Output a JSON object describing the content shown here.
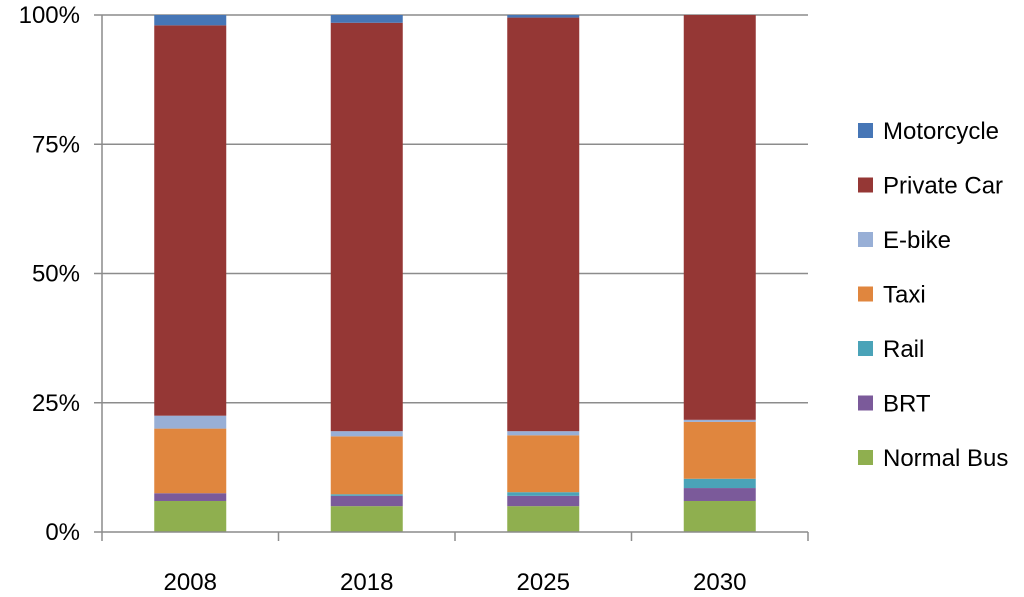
{
  "chart_data": {
    "type": "bar",
    "stacked": true,
    "percent_stacked": true,
    "categories": [
      "2008",
      "2018",
      "2025",
      "2030"
    ],
    "series": [
      {
        "name": "Normal Bus",
        "color": "#8FAF4F",
        "values": [
          6.0,
          5.0,
          5.0,
          6.0
        ]
      },
      {
        "name": "BRT",
        "color": "#7B5A9A",
        "values": [
          1.5,
          2.0,
          2.0,
          2.5
        ]
      },
      {
        "name": "Rail",
        "color": "#4AA3B8",
        "values": [
          0.0,
          0.3,
          0.7,
          1.8
        ]
      },
      {
        "name": "Taxi",
        "color": "#E0863E",
        "values": [
          12.5,
          11.2,
          11.0,
          11.0
        ]
      },
      {
        "name": "E-bike",
        "color": "#98AFD6",
        "values": [
          2.5,
          1.0,
          0.8,
          0.4
        ]
      },
      {
        "name": "Private Car",
        "color": "#953735",
        "values": [
          75.5,
          79.0,
          80.0,
          78.3
        ]
      },
      {
        "name": "Motorcycle",
        "color": "#4676B6",
        "values": [
          2.0,
          1.5,
          0.5,
          0.0
        ]
      }
    ],
    "yticks": [
      "0%",
      "25%",
      "50%",
      "75%",
      "100%"
    ],
    "ylim": [
      0,
      100
    ],
    "grid": true,
    "legend_position": "right",
    "legend_order": [
      "Motorcycle",
      "Private Car",
      "E-bike",
      "Taxi",
      "Rail",
      "BRT",
      "Normal Bus"
    ]
  }
}
